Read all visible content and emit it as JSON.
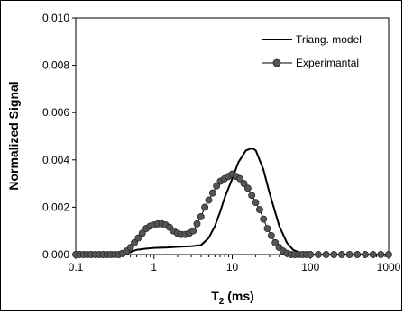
{
  "chart_data": {
    "type": "line",
    "title": "",
    "xlabel": "T",
    "xlabel_sub": "2",
    "xlabel_unit": " (ms)",
    "ylabel": "Normalized Signal",
    "xscale": "log",
    "xlim": [
      0.1,
      1000
    ],
    "ylim": [
      0,
      0.01
    ],
    "x_ticks": [
      "0.1",
      "1",
      "10",
      "100",
      "1000"
    ],
    "y_ticks": [
      "0.000",
      "0.002",
      "0.004",
      "0.006",
      "0.008",
      "0.010"
    ],
    "grid": false,
    "legend_position": "top-right",
    "series": [
      {
        "name": "Triang. model",
        "style": "solid-line",
        "color": "#000000",
        "x": [
          0.1,
          0.2,
          0.3,
          0.4,
          0.5,
          0.6,
          0.8,
          1.0,
          1.5,
          2.0,
          3.0,
          4.0,
          5.0,
          6.0,
          7.0,
          8.0,
          10.0,
          12.0,
          15.0,
          18.0,
          20.0,
          25.0,
          30.0,
          40.0,
          50.0,
          60.0,
          80.0,
          100.0,
          200.0,
          500.0,
          1000.0
        ],
        "values": [
          0,
          0,
          0,
          2e-05,
          0.0001,
          0.0002,
          0.00025,
          0.00028,
          0.0003,
          0.00033,
          0.00035,
          0.0004,
          0.0007,
          0.0012,
          0.0018,
          0.0024,
          0.0032,
          0.0039,
          0.0044,
          0.0045,
          0.0044,
          0.0036,
          0.0026,
          0.0012,
          0.0005,
          0.0002,
          3e-05,
          0,
          0,
          0,
          0
        ]
      },
      {
        "name": "Experimantal",
        "style": "line-with-circle-markers",
        "color": "#000000",
        "marker_color": "#555555",
        "x": [
          0.1,
          0.112,
          0.126,
          0.141,
          0.158,
          0.178,
          0.2,
          0.224,
          0.251,
          0.282,
          0.316,
          0.355,
          0.398,
          0.447,
          0.501,
          0.562,
          0.631,
          0.708,
          0.794,
          0.891,
          1.0,
          1.122,
          1.259,
          1.413,
          1.585,
          1.778,
          1.995,
          2.239,
          2.512,
          2.818,
          3.162,
          3.548,
          3.981,
          4.467,
          5.012,
          5.623,
          6.31,
          7.079,
          7.943,
          8.913,
          10.0,
          11.22,
          12.59,
          14.13,
          15.85,
          17.78,
          19.95,
          22.39,
          25.12,
          28.18,
          31.62,
          35.48,
          39.81,
          44.67,
          50.12,
          56.23,
          63.1,
          70.79,
          79.43,
          89.13,
          100.0,
          125.9,
          158.5,
          199.5,
          251.2,
          316.2,
          398.1,
          501.2,
          631,
          794.3,
          1000
        ],
        "values": [
          0,
          0,
          0,
          0,
          0,
          0,
          0,
          0,
          0,
          0,
          0,
          0,
          5e-05,
          0.00015,
          0.0003,
          0.0005,
          0.0007,
          0.0009,
          0.0011,
          0.0012,
          0.00125,
          0.0013,
          0.0013,
          0.00125,
          0.00115,
          0.001,
          0.0009,
          0.00085,
          0.00085,
          0.0009,
          0.001,
          0.0013,
          0.0016,
          0.002,
          0.0023,
          0.0026,
          0.0029,
          0.0031,
          0.0032,
          0.0033,
          0.0034,
          0.0033,
          0.0032,
          0.003,
          0.0028,
          0.0025,
          0.0022,
          0.0019,
          0.0015,
          0.0011,
          0.0008,
          0.0005,
          0.0003,
          0.00015,
          5e-05,
          0,
          0,
          0,
          0,
          0,
          0,
          0,
          0,
          0,
          0,
          0,
          0,
          0,
          0,
          0,
          0
        ]
      }
    ]
  }
}
